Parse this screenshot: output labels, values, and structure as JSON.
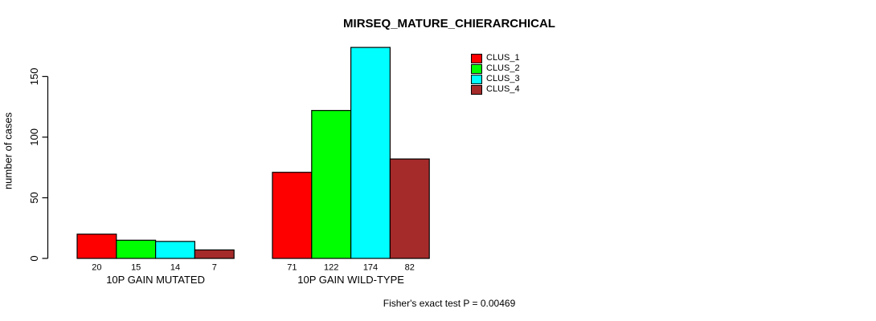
{
  "chart_data": {
    "type": "bar",
    "title": "MIRSEQ_MATURE_CHIERARCHICAL",
    "ylabel": "number of cases",
    "xlabel": "",
    "categories": [
      "10P GAIN MUTATED",
      "10P GAIN WILD-TYPE"
    ],
    "series": [
      {
        "name": "CLUS_1",
        "color": "#ff0000",
        "values": [
          20,
          71
        ]
      },
      {
        "name": "CLUS_2",
        "color": "#00ff00",
        "values": [
          15,
          122
        ]
      },
      {
        "name": "CLUS_3",
        "color": "#00ffff",
        "values": [
          14,
          174
        ]
      },
      {
        "name": "CLUS_4",
        "color": "#a52a2a",
        "values": [
          7,
          82
        ]
      }
    ],
    "yticks": [
      0,
      50,
      100,
      150
    ],
    "ylim": [
      0,
      176
    ],
    "grid": false,
    "value_labels_shown": true,
    "legend_position": "top-right",
    "legend_entries": [
      "CLUS_1",
      "CLUS_2",
      "CLUS_3",
      "CLUS_4"
    ],
    "annotation": "Fisher's exact test P = 0.00469",
    "axis_color": "#000000",
    "bar_border_color": "#000000",
    "background_color": "#ffffff"
  }
}
